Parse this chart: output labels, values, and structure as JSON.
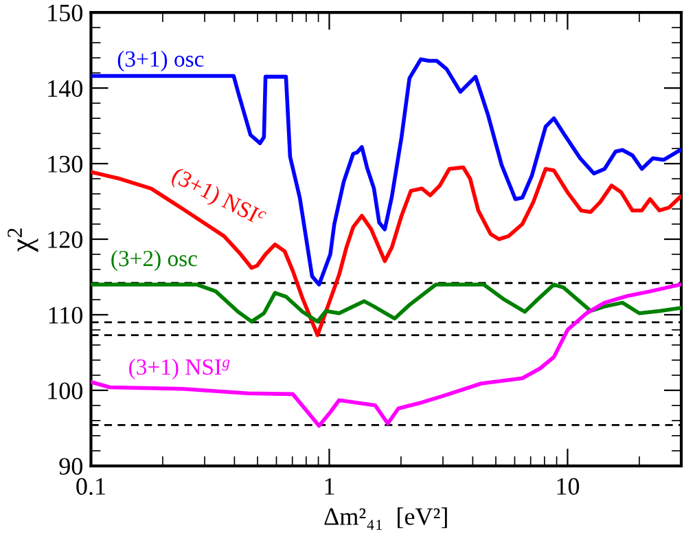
{
  "chart_data": {
    "type": "line",
    "xlabel": "Δm²₄₁  [eV²]",
    "ylabel": "χ$^{2}$",
    "log": "x",
    "xlim": [
      0.1,
      30
    ],
    "xticks": [
      0.1,
      1,
      10
    ],
    "ylim": [
      90,
      150
    ],
    "yticks": [
      90,
      100,
      110,
      120,
      130,
      140,
      150
    ],
    "grid": false,
    "legend": false,
    "marker": "none",
    "line_style": "solid",
    "series": [
      {
        "name": "(3+1) osc",
        "color": "#0000ff",
        "x": [
          0.1,
          0.397,
          0.414,
          0.467,
          0.512,
          0.532,
          0.54,
          0.658,
          0.685,
          0.752,
          0.847,
          0.906,
          1.01,
          1.05,
          1.15,
          1.26,
          1.31,
          1.37,
          1.44,
          1.54,
          1.62,
          1.71,
          1.83,
          2.01,
          2.17,
          2.42,
          2.62,
          2.83,
          3.11,
          3.55,
          3.79,
          4.11,
          4.63,
          5.29,
          6.04,
          6.46,
          7.08,
          8.09,
          8.76,
          9.62,
          11.3,
          12.9,
          14.3,
          15.9,
          17.0,
          18.7,
          20.5,
          22.8,
          25.3,
          29.7
        ],
        "values": [
          141.6,
          141.6,
          139.5,
          133.8,
          132.7,
          133.5,
          141.5,
          141.5,
          130.9,
          125.5,
          115.1,
          114.0,
          118.0,
          122.0,
          127.6,
          131.3,
          131.5,
          132.2,
          129.5,
          126.7,
          122.2,
          121.3,
          125.6,
          133.5,
          141.3,
          143.8,
          143.6,
          143.6,
          142.5,
          139.5,
          140.4,
          141.5,
          136.5,
          129.8,
          125.3,
          125.5,
          128.4,
          134.9,
          136.0,
          134.0,
          130.7,
          128.7,
          129.3,
          131.6,
          131.8,
          131.1,
          129.3,
          130.7,
          130.5,
          131.8
        ]
      },
      {
        "name": "(3+1) NSI$^{c}$",
        "color": "#ff0000",
        "x": [
          0.1,
          0.132,
          0.179,
          0.243,
          0.362,
          0.425,
          0.472,
          0.498,
          0.54,
          0.592,
          0.65,
          0.703,
          0.772,
          0.893,
          1.1,
          1.18,
          1.26,
          1.37,
          1.5,
          1.71,
          1.83,
          2.01,
          2.2,
          2.45,
          2.65,
          2.91,
          3.19,
          3.65,
          3.9,
          4.22,
          4.75,
          5.15,
          5.65,
          6.46,
          7.18,
          8.09,
          8.76,
          10.0,
          11.4,
          12.5,
          13.7,
          15.3,
          16.8,
          18.7,
          20.5,
          22.2,
          24.3,
          26.7,
          29.7
        ],
        "values": [
          128.9,
          128.0,
          126.7,
          124.0,
          120.4,
          118.0,
          116.2,
          116.5,
          118.0,
          119.3,
          118.4,
          115.8,
          112.2,
          107.3,
          115.3,
          118.9,
          121.6,
          123.1,
          121.3,
          117.1,
          118.9,
          123.1,
          126.4,
          126.7,
          125.8,
          127.1,
          129.3,
          129.5,
          128.0,
          123.8,
          120.7,
          120.0,
          120.4,
          122.0,
          124.9,
          129.3,
          129.1,
          126.2,
          123.8,
          123.6,
          124.9,
          127.1,
          126.2,
          123.8,
          123.8,
          125.3,
          123.8,
          124.2,
          125.6
        ]
      },
      {
        "name": "(3+2) osc",
        "color": "#008000",
        "x": [
          0.1,
          0.278,
          0.334,
          0.414,
          0.472,
          0.532,
          0.592,
          0.658,
          0.772,
          0.893,
          0.968,
          1.1,
          1.4,
          1.54,
          1.88,
          2.17,
          2.8,
          4.45,
          5.43,
          6.62,
          7.36,
          8.76,
          9.62,
          12.5,
          14.3,
          17.0,
          20.0,
          24.3,
          29.7
        ],
        "values": [
          114.0,
          114.0,
          113.1,
          110.4,
          109.1,
          110.2,
          112.9,
          112.4,
          110.4,
          109.1,
          110.5,
          110.2,
          111.8,
          111.1,
          109.5,
          111.3,
          114.0,
          114.0,
          112.0,
          110.4,
          111.8,
          114.0,
          113.6,
          110.5,
          111.1,
          111.6,
          110.2,
          110.5,
          110.9
        ]
      },
      {
        "name": "(3+1) NSI$^{g}$",
        "color": "#ff00ff",
        "x": [
          0.1,
          0.12,
          0.243,
          0.454,
          0.703,
          0.906,
          1.01,
          1.1,
          1.56,
          1.76,
          1.95,
          2.45,
          3.03,
          4.34,
          6.46,
          7.67,
          8.76,
          10.0,
          12.0,
          14.3,
          17.9,
          22.2,
          29.7
        ],
        "values": [
          101.1,
          100.4,
          100.2,
          99.6,
          99.5,
          95.3,
          97.1,
          98.7,
          98.0,
          95.6,
          97.6,
          98.4,
          99.3,
          100.9,
          101.6,
          102.9,
          104.4,
          108.0,
          110.2,
          111.6,
          112.5,
          113.1,
          114.0
        ]
      }
    ],
    "ref_lines": [
      {
        "axis": "y",
        "value": 114.2,
        "color": "#000000",
        "line_style": "dashed"
      },
      {
        "axis": "y",
        "value": 109.0,
        "color": "#000000",
        "line_style": "dashed"
      },
      {
        "axis": "y",
        "value": 107.3,
        "color": "#000000",
        "line_style": "dashed"
      },
      {
        "axis": "y",
        "value": 95.4,
        "color": "#000000",
        "line_style": "dashed"
      }
    ]
  }
}
